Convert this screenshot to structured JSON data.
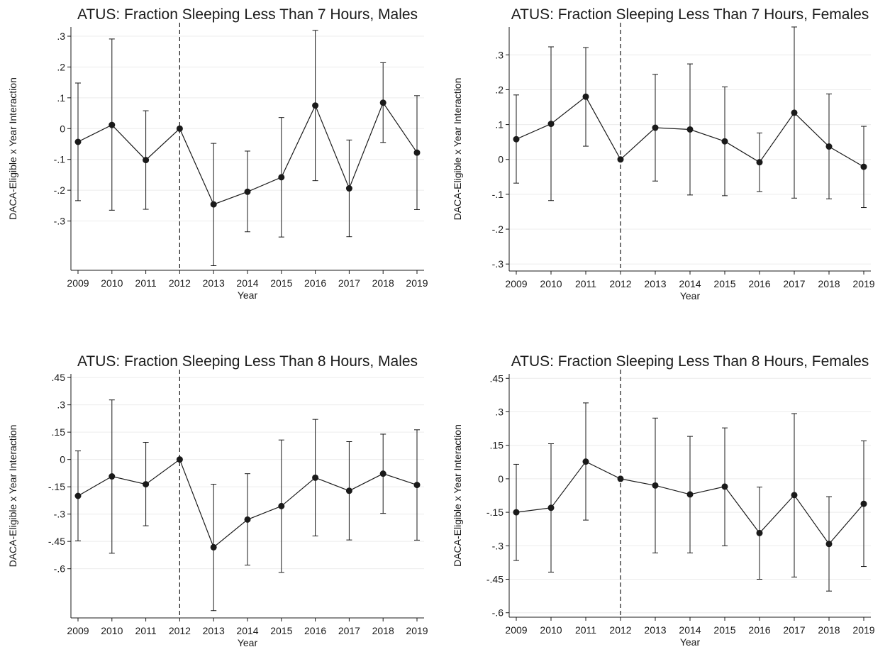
{
  "chart_data": [
    {
      "type": "line",
      "title": "ATUS: Fraction Sleeping Less Than 7 Hours, Males",
      "xlabel": "Year",
      "ylabel": "DACA-Eligible x Year Interaction",
      "x": [
        2009,
        2010,
        2011,
        2012,
        2013,
        2014,
        2015,
        2016,
        2017,
        2018,
        2019
      ],
      "x_tick_labels": [
        "2009",
        "2010",
        "2011",
        "2012",
        "2013",
        "2014",
        "2015",
        "2016",
        "2017",
        "2018",
        "2019"
      ],
      "values": [
        -0.043,
        0.012,
        -0.102,
        0.0,
        -0.246,
        -0.205,
        -0.158,
        0.075,
        -0.194,
        0.084,
        -0.078
      ],
      "ci_upper": [
        0.148,
        0.291,
        0.058,
        0.0,
        -0.048,
        -0.073,
        0.036,
        0.319,
        -0.037,
        0.214,
        0.107
      ],
      "ci_lower": [
        -0.234,
        -0.265,
        -0.262,
        0.0,
        -0.445,
        -0.335,
        -0.352,
        -0.169,
        -0.351,
        -0.045,
        -0.263
      ],
      "yticks": [
        0.3,
        0.2,
        0.1,
        0,
        -0.1,
        -0.2,
        -0.3
      ],
      "ytick_labels": [
        ".3",
        ".2",
        ".1",
        "0",
        "-.1",
        "-.2",
        "-.3"
      ],
      "ylim": [
        -0.46,
        0.33
      ],
      "reference_line_x": 2012,
      "grid": true
    },
    {
      "type": "line",
      "title": "ATUS: Fraction Sleeping Less Than 7 Hours, Females",
      "xlabel": "Year",
      "ylabel": "DACA-Eligible x Year Interaction",
      "x": [
        2009,
        2010,
        2011,
        2012,
        2013,
        2014,
        2015,
        2016,
        2017,
        2018,
        2019
      ],
      "x_tick_labels": [
        "2009",
        "2010",
        "2011",
        "2012",
        "2013",
        "2014",
        "2015",
        "2016",
        "2017",
        "2018",
        "2019"
      ],
      "values": [
        0.058,
        0.102,
        0.18,
        0.0,
        0.091,
        0.086,
        0.052,
        -0.008,
        0.134,
        0.037,
        -0.021
      ],
      "ci_upper": [
        0.185,
        0.323,
        0.321,
        0.0,
        0.244,
        0.274,
        0.208,
        0.076,
        0.38,
        0.188,
        0.095
      ],
      "ci_lower": [
        -0.068,
        -0.118,
        0.038,
        0.0,
        -0.062,
        -0.102,
        -0.104,
        -0.092,
        -0.111,
        -0.113,
        -0.138
      ],
      "yticks": [
        0.3,
        0.2,
        0.1,
        0,
        -0.1,
        -0.2,
        -0.3
      ],
      "ytick_labels": [
        ".3",
        ".2",
        ".1",
        "0",
        "-.1",
        "-.2",
        "-.3"
      ],
      "ylim": [
        -0.32,
        0.38
      ],
      "reference_line_x": 2012,
      "grid": true
    },
    {
      "type": "line",
      "title": "ATUS: Fraction Sleeping Less Than 8 Hours, Males",
      "xlabel": "Year",
      "ylabel": "DACA-Eligible x Year Interaction",
      "x": [
        2009,
        2010,
        2011,
        2012,
        2013,
        2014,
        2015,
        2016,
        2017,
        2018,
        2019
      ],
      "x_tick_labels": [
        "2009",
        "2010",
        "2011",
        "2012",
        "2013",
        "2014",
        "2015",
        "2016",
        "2017",
        "2018",
        "2019"
      ],
      "values": [
        -0.2,
        -0.093,
        -0.136,
        0.0,
        -0.482,
        -0.33,
        -0.256,
        -0.1,
        -0.172,
        -0.078,
        -0.14
      ],
      "ci_upper": [
        0.047,
        0.327,
        0.094,
        0.0,
        -0.136,
        -0.078,
        0.107,
        0.22,
        0.098,
        0.139,
        0.163
      ],
      "ci_lower": [
        -0.447,
        -0.515,
        -0.364,
        0.0,
        -0.83,
        -0.58,
        -0.62,
        -0.42,
        -0.442,
        -0.296,
        -0.443
      ],
      "yticks": [
        0.45,
        0.3,
        0.15,
        0,
        -0.15,
        -0.3,
        -0.45,
        -0.6
      ],
      "ytick_labels": [
        ".45",
        ".3",
        ".15",
        "0",
        "-.15",
        "-.3",
        "-.45",
        "-.6"
      ],
      "ylim": [
        -0.87,
        0.47
      ],
      "reference_line_x": 2012,
      "grid": true
    },
    {
      "type": "line",
      "title": "ATUS: Fraction Sleeping Less Than 8 Hours, Females",
      "xlabel": "Year",
      "ylabel": "DACA-Eligible x Year Interaction",
      "x": [
        2009,
        2010,
        2011,
        2012,
        2013,
        2014,
        2015,
        2016,
        2017,
        2018,
        2019
      ],
      "x_tick_labels": [
        "2009",
        "2010",
        "2011",
        "2012",
        "2013",
        "2014",
        "2015",
        "2016",
        "2017",
        "2018",
        "2019"
      ],
      "values": [
        -0.15,
        -0.13,
        0.077,
        0.0,
        -0.03,
        -0.07,
        -0.035,
        -0.243,
        -0.073,
        -0.292,
        -0.112
      ],
      "ci_upper": [
        0.065,
        0.157,
        0.34,
        0.0,
        0.272,
        0.19,
        0.228,
        -0.037,
        0.292,
        -0.08,
        0.17
      ],
      "ci_lower": [
        -0.366,
        -0.418,
        -0.185,
        0.0,
        -0.332,
        -0.332,
        -0.3,
        -0.45,
        -0.44,
        -0.503,
        -0.393
      ],
      "yticks": [
        0.45,
        0.3,
        0.15,
        0,
        -0.15,
        -0.3,
        -0.45,
        -0.6
      ],
      "ytick_labels": [
        ".45",
        ".3",
        ".15",
        "0",
        "-.15",
        "-.3",
        "-.45",
        "-.6"
      ],
      "ylim": [
        -0.62,
        0.47
      ],
      "reference_line_x": 2012,
      "grid": true
    }
  ]
}
